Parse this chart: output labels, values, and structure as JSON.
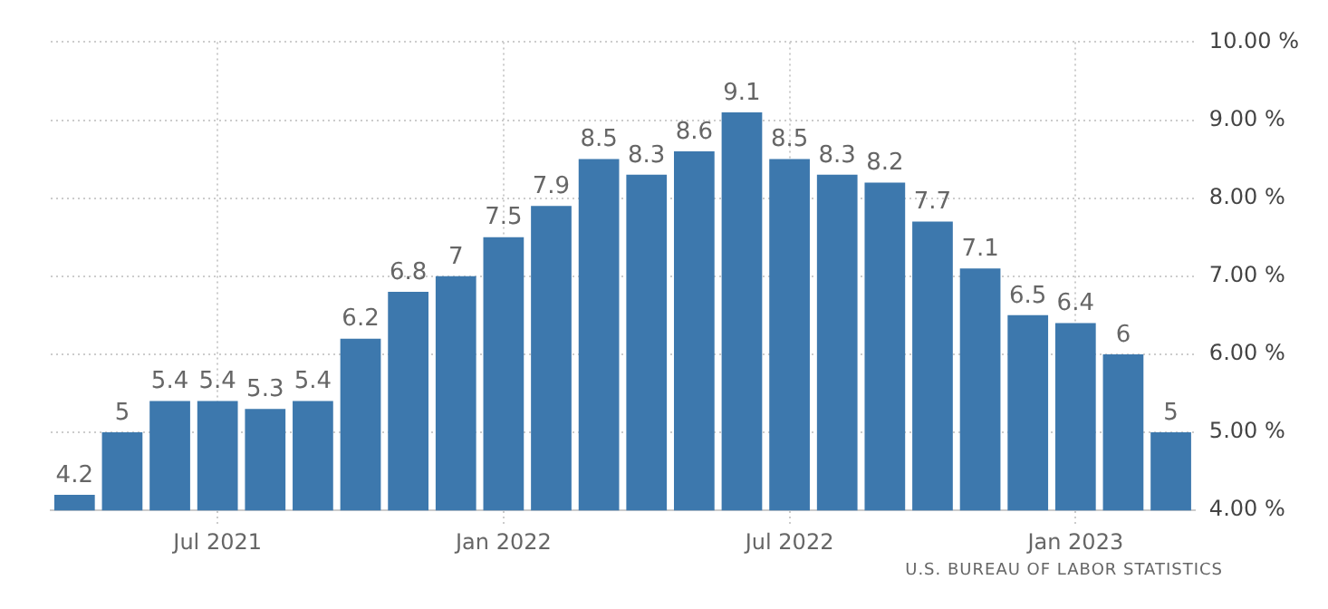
{
  "chart_data": {
    "type": "bar",
    "categories": [
      null,
      null,
      null,
      "Jul 2021",
      null,
      null,
      null,
      null,
      null,
      "Jan 2022",
      null,
      null,
      null,
      null,
      null,
      "Jul 2022",
      null,
      null,
      null,
      null,
      null,
      "Jan 2023",
      null,
      null
    ],
    "values": [
      4.2,
      5,
      5.4,
      5.4,
      5.3,
      5.4,
      6.2,
      6.8,
      7,
      7.5,
      7.9,
      8.5,
      8.3,
      8.6,
      9.1,
      8.5,
      8.3,
      8.2,
      7.7,
      7.1,
      6.5,
      6.4,
      6,
      5
    ],
    "color": "#3d78ad",
    "ylim": [
      4,
      10
    ],
    "yticks": [
      {
        "value": 4,
        "label": "4.00 %"
      },
      {
        "value": 5,
        "label": "5.00 %"
      },
      {
        "value": 6,
        "label": "6.00 %"
      },
      {
        "value": 7,
        "label": "7.00 %"
      },
      {
        "value": 8,
        "label": "8.00 %"
      },
      {
        "value": 9,
        "label": "9.00 %"
      },
      {
        "value": 10,
        "label": "10.00 %"
      }
    ],
    "grid": true,
    "data_labels": true,
    "annotations": [
      "U.S. BUREAU OF LABOR STATISTICS"
    ]
  }
}
